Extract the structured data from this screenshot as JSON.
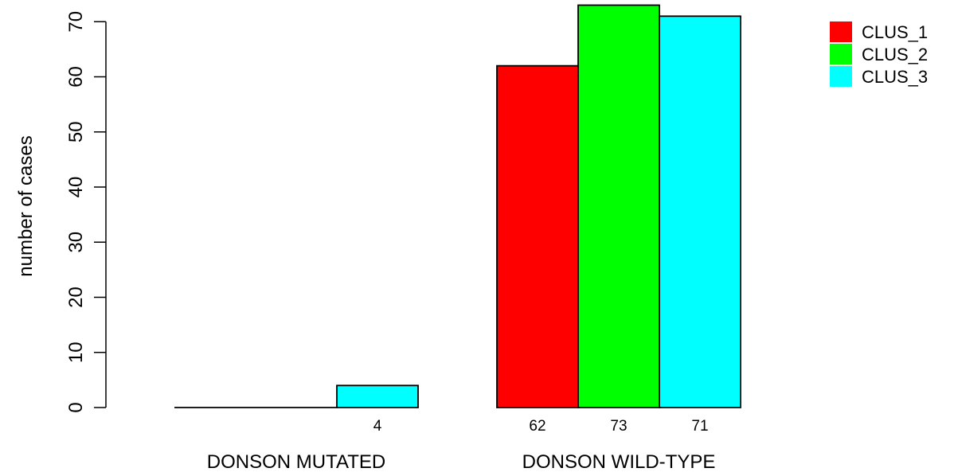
{
  "chart_data": {
    "type": "bar",
    "title": "",
    "xlabel": "",
    "ylabel": "number of cases",
    "ylim": [
      0,
      73
    ],
    "yticks": [
      0,
      10,
      20,
      30,
      40,
      50,
      60,
      70
    ],
    "categories": [
      "DONSON MUTATED",
      "DONSON WILD-TYPE"
    ],
    "series": [
      {
        "name": "CLUS_1",
        "color": "#FF0000",
        "values": [
          0,
          62
        ],
        "labels": [
          "",
          "62"
        ]
      },
      {
        "name": "CLUS_2",
        "color": "#00FF00",
        "values": [
          0,
          73
        ],
        "labels": [
          "",
          "73"
        ]
      },
      {
        "name": "CLUS_3",
        "color": "#00FFFF",
        "values": [
          4,
          71
        ],
        "labels": [
          "4",
          "71"
        ]
      }
    ],
    "legend": {
      "position": "top-right"
    },
    "grid": false
  }
}
